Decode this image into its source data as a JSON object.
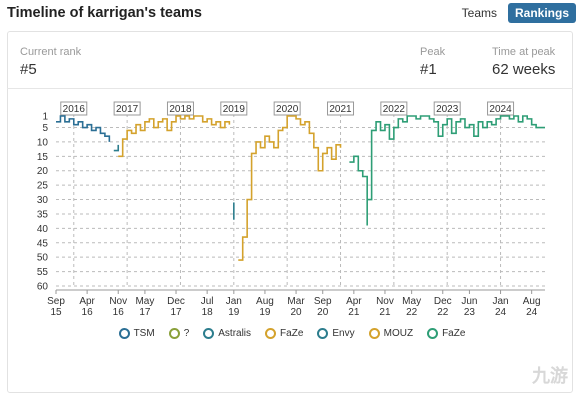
{
  "header": {
    "title": "Timeline of karrigan's teams",
    "toggle": {
      "teams_label": "Teams",
      "rankings_label": "Rankings"
    }
  },
  "stats": {
    "current_rank_label": "Current rank",
    "current_rank_value": "#5",
    "peak_label": "Peak",
    "peak_value": "#1",
    "time_at_peak_label": "Time at peak",
    "time_at_peak_value": "62 weeks"
  },
  "watermark": "九游",
  "chart_data": {
    "type": "line",
    "title": "",
    "xlabel": "",
    "ylabel": "",
    "y_inverted": true,
    "ylim": [
      1,
      60
    ],
    "y_ticks": [
      1,
      5,
      10,
      15,
      20,
      25,
      30,
      35,
      40,
      45,
      50,
      55,
      60
    ],
    "xlim": [
      "2015-09",
      "2024-11"
    ],
    "year_markers": [
      "2016",
      "2017",
      "2018",
      "2019",
      "2020",
      "2021",
      "2022",
      "2023",
      "2024"
    ],
    "x_ticks": [
      {
        "m": "Sep",
        "y": "15"
      },
      {
        "m": "Apr",
        "y": "16"
      },
      {
        "m": "Nov",
        "y": "16"
      },
      {
        "m": "May",
        "y": "17"
      },
      {
        "m": "Dec",
        "y": "17"
      },
      {
        "m": "Jul",
        "y": "18"
      },
      {
        "m": "Jan",
        "y": "19"
      },
      {
        "m": "Aug",
        "y": "19"
      },
      {
        "m": "Mar",
        "y": "20"
      },
      {
        "m": "Sep",
        "y": "20"
      },
      {
        "m": "Apr",
        "y": "21"
      },
      {
        "m": "Nov",
        "y": "21"
      },
      {
        "m": "May",
        "y": "22"
      },
      {
        "m": "Dec",
        "y": "22"
      },
      {
        "m": "Jun",
        "y": "23"
      },
      {
        "m": "Jan",
        "y": "24"
      },
      {
        "m": "Aug",
        "y": "24"
      }
    ],
    "grid": true,
    "legend_position": "bottom",
    "series": [
      {
        "name": "TSM",
        "color": "#2b6f95",
        "points": [
          [
            "2015-09",
            3
          ],
          [
            "2015-10",
            1
          ],
          [
            "2015-11",
            3
          ],
          [
            "2015-12",
            2
          ],
          [
            "2016-01",
            4
          ],
          [
            "2016-02",
            3
          ],
          [
            "2016-03",
            5
          ],
          [
            "2016-04",
            4
          ],
          [
            "2016-05",
            6
          ],
          [
            "2016-06",
            5
          ],
          [
            "2016-07",
            7
          ],
          [
            "2016-08",
            8
          ],
          [
            "2016-09",
            10
          ]
        ]
      },
      {
        "name": "?",
        "color": "#8aa03a",
        "points": []
      },
      {
        "name": "Astralis",
        "color": "#2c7d8d",
        "points": [
          [
            "2016-10",
            13
          ],
          [
            "2016-11",
            11
          ]
        ]
      },
      {
        "name": "FaZe",
        "color": "#d4a22c",
        "points": [
          [
            "2016-11",
            15
          ],
          [
            "2016-12",
            9
          ],
          [
            "2017-01",
            6
          ],
          [
            "2017-02",
            7
          ],
          [
            "2017-03",
            4
          ],
          [
            "2017-04",
            6
          ],
          [
            "2017-05",
            3
          ],
          [
            "2017-06",
            2
          ],
          [
            "2017-07",
            5
          ],
          [
            "2017-08",
            3
          ],
          [
            "2017-09",
            2
          ],
          [
            "2017-10",
            6
          ],
          [
            "2017-11",
            3
          ],
          [
            "2017-12",
            1
          ],
          [
            "2018-01",
            2
          ],
          [
            "2018-02",
            1
          ],
          [
            "2018-03",
            2
          ],
          [
            "2018-04",
            1
          ],
          [
            "2018-05",
            1
          ],
          [
            "2018-06",
            3
          ],
          [
            "2018-07",
            2
          ],
          [
            "2018-08",
            4
          ],
          [
            "2018-09",
            3
          ],
          [
            "2018-10",
            5
          ],
          [
            "2018-11",
            3
          ],
          [
            "2018-12",
            4
          ]
        ]
      },
      {
        "name": "Envy",
        "color": "#2c7d8d",
        "points": [
          [
            "2019-01",
            37
          ],
          [
            "2019-01",
            31
          ]
        ]
      },
      {
        "name": "MOUZ",
        "color": "#d4a22c",
        "points": [
          [
            "2019-02",
            51
          ],
          [
            "2019-03",
            43
          ],
          [
            "2019-04",
            30
          ],
          [
            "2019-05",
            14
          ],
          [
            "2019-06",
            10
          ],
          [
            "2019-07",
            12
          ],
          [
            "2019-08",
            8
          ],
          [
            "2019-09",
            10
          ],
          [
            "2019-10",
            12
          ],
          [
            "2019-11",
            6
          ],
          [
            "2019-12",
            5
          ],
          [
            "2020-01",
            1
          ],
          [
            "2020-02",
            1
          ],
          [
            "2020-03",
            2
          ],
          [
            "2020-04",
            4
          ],
          [
            "2020-05",
            3
          ],
          [
            "2020-06",
            7
          ],
          [
            "2020-07",
            12
          ],
          [
            "2020-08",
            20
          ],
          [
            "2020-09",
            14
          ],
          [
            "2020-10",
            12
          ],
          [
            "2020-11",
            16
          ],
          [
            "2020-12",
            11
          ],
          [
            "2021-01",
            12
          ]
        ]
      },
      {
        "name": "FaZe",
        "color": "#2e9e76",
        "points": [
          [
            "2021-03",
            17
          ],
          [
            "2021-04",
            15
          ],
          [
            "2021-05",
            20
          ],
          [
            "2021-06",
            22
          ],
          [
            "2021-07",
            39
          ],
          [
            "2021-07",
            30
          ],
          [
            "2021-08",
            6
          ],
          [
            "2021-09",
            3
          ],
          [
            "2021-10",
            6
          ],
          [
            "2021-11",
            4
          ],
          [
            "2021-12",
            9
          ],
          [
            "2022-01",
            5
          ],
          [
            "2022-02",
            2
          ],
          [
            "2022-03",
            3
          ],
          [
            "2022-04",
            1
          ],
          [
            "2022-05",
            1
          ],
          [
            "2022-06",
            2
          ],
          [
            "2022-07",
            1
          ],
          [
            "2022-08",
            1
          ],
          [
            "2022-09",
            2
          ],
          [
            "2022-10",
            3
          ],
          [
            "2022-11",
            8
          ],
          [
            "2022-12",
            4
          ],
          [
            "2023-01",
            2
          ],
          [
            "2023-02",
            7
          ],
          [
            "2023-03",
            3
          ],
          [
            "2023-04",
            2
          ],
          [
            "2023-05",
            5
          ],
          [
            "2023-06",
            4
          ],
          [
            "2023-07",
            8
          ],
          [
            "2023-08",
            3
          ],
          [
            "2023-09",
            5
          ],
          [
            "2023-10",
            3
          ],
          [
            "2023-11",
            4
          ],
          [
            "2023-12",
            2
          ],
          [
            "2024-01",
            1
          ],
          [
            "2024-02",
            1
          ],
          [
            "2024-03",
            2
          ],
          [
            "2024-04",
            1
          ],
          [
            "2024-05",
            3
          ],
          [
            "2024-06",
            1
          ],
          [
            "2024-07",
            2
          ],
          [
            "2024-08",
            4
          ],
          [
            "2024-09",
            5
          ],
          [
            "2024-10",
            5
          ],
          [
            "2024-11",
            5
          ]
        ]
      }
    ]
  }
}
